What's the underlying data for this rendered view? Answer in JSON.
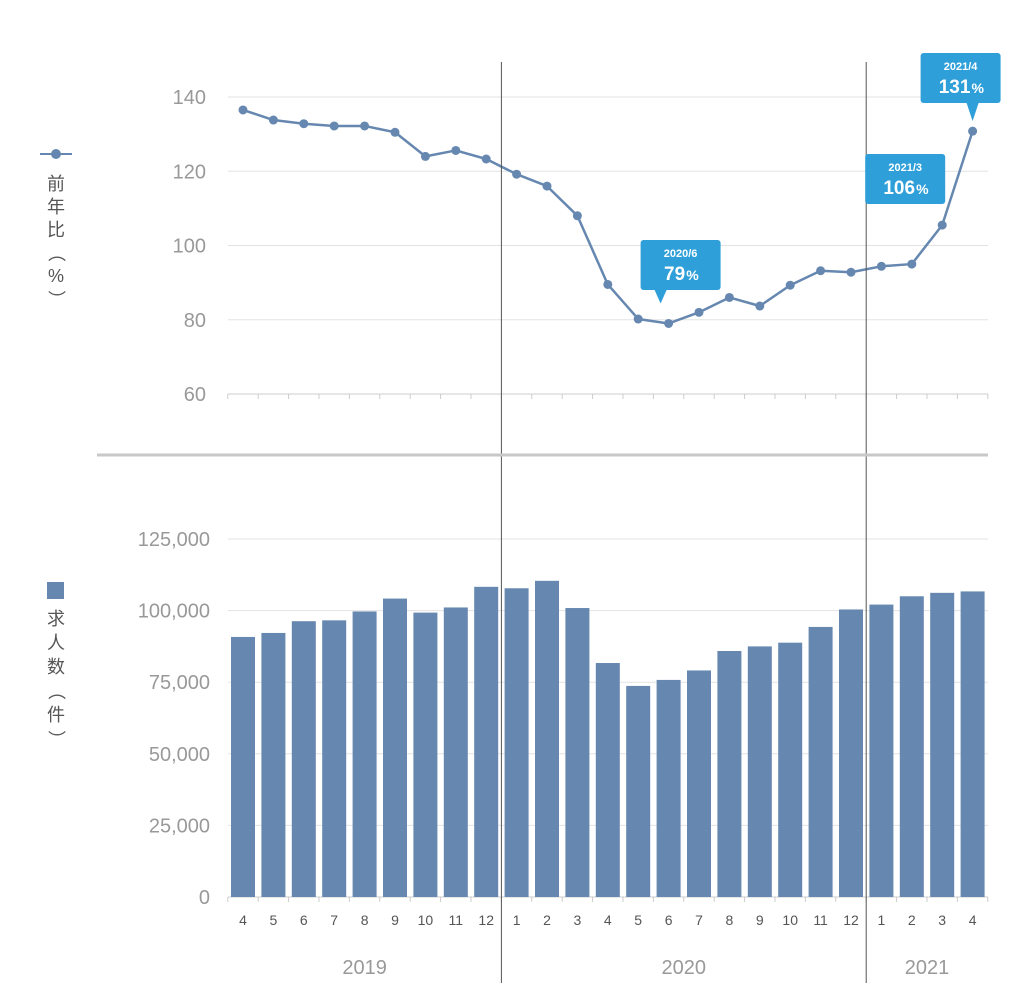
{
  "chart_data": [
    {
      "type": "line",
      "ylabel": "前年比（%）",
      "ylim": [
        60,
        140
      ],
      "yticks": [
        60,
        80,
        100,
        120,
        140
      ],
      "categories": [
        "4",
        "5",
        "6",
        "7",
        "8",
        "9",
        "10",
        "11",
        "12",
        "1",
        "2",
        "3",
        "4",
        "5",
        "6",
        "7",
        "8",
        "9",
        "10",
        "11",
        "12",
        "1",
        "2",
        "3",
        "4"
      ],
      "series": [
        {
          "values": [
            136.5,
            133.8,
            132.8,
            132.2,
            132.2,
            130.5,
            124.0,
            125.6,
            123.3,
            119.2,
            116.0,
            108.0,
            89.5,
            80.2,
            79.0,
            82.0,
            86.0,
            83.7,
            89.3,
            93.2,
            92.8,
            94.4,
            95.0,
            105.5,
            130.8
          ]
        }
      ],
      "annotations": [
        {
          "date": "2020/6",
          "value": "79",
          "unit": "%",
          "index": 14
        },
        {
          "date": "2021/3",
          "value": "106",
          "unit": "%",
          "index": 23
        },
        {
          "date": "2021/4",
          "value": "131",
          "unit": "%",
          "index": 24
        }
      ],
      "color": "#6688b0",
      "grid": true
    },
    {
      "type": "bar",
      "ylabel": "求人数（件）",
      "ylim": [
        0,
        125000
      ],
      "yticks": [
        "0",
        "25,000",
        "50,000",
        "75,000",
        "100,000",
        "125,000"
      ],
      "ytick_values": [
        0,
        25000,
        50000,
        75000,
        100000,
        125000
      ],
      "categories": [
        "4",
        "5",
        "6",
        "7",
        "8",
        "9",
        "10",
        "11",
        "12",
        "1",
        "2",
        "3",
        "4",
        "5",
        "6",
        "7",
        "8",
        "9",
        "10",
        "11",
        "12",
        "1",
        "2",
        "3",
        "4"
      ],
      "series": [
        {
          "values": [
            90800,
            92200,
            96300,
            96600,
            99700,
            104200,
            99300,
            101100,
            108300,
            107800,
            110400,
            100900,
            81700,
            73700,
            75800,
            79100,
            85900,
            87500,
            88800,
            94300,
            100400,
            102100,
            105000,
            106200,
            106700
          ]
        }
      ],
      "color": "#6688b0",
      "grid": true
    }
  ],
  "years": [
    {
      "label": "2019",
      "start": 0,
      "end": 8
    },
    {
      "label": "2020",
      "start": 9,
      "end": 20
    },
    {
      "label": "2021",
      "start": 21,
      "end": 24
    }
  ],
  "colors": {
    "series": "#6688b0",
    "callout": "#2e9fd8",
    "grid": "#e3e3e3",
    "axis": "#cccccc",
    "divider": "#555555"
  }
}
